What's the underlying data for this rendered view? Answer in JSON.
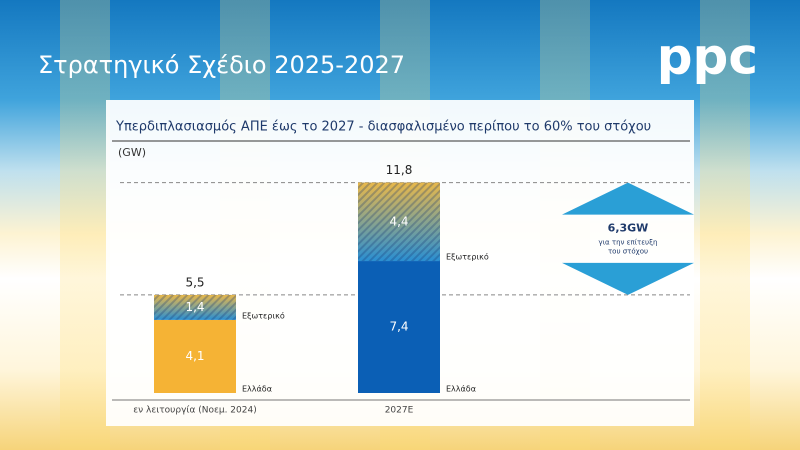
{
  "header": {
    "title": "Στρατηγικό Σχέδιο 2025-2027",
    "logo": "ppc"
  },
  "chart_data": {
    "type": "bar",
    "stacked": true,
    "title": "Υπερδιπλασιασμός ΑΠΕ έως το 2027 - διασφαλισμένο περίπου το 60% του στόχου",
    "y_label": "(GW)",
    "categories": [
      "εν λειτουργία (Νοεμ. 2024)",
      "2027E"
    ],
    "series": [
      {
        "name": "Ελλάδα",
        "colors": [
          "#f5b335",
          "#0b5fb5"
        ],
        "values": [
          4.1,
          7.4
        ],
        "value_labels": [
          "4,1",
          "7,4"
        ]
      },
      {
        "name": "Εξωτερικό",
        "colors": [
          "#e8b84a",
          "#2a8fd2"
        ],
        "values": [
          1.4,
          4.4
        ],
        "value_labels": [
          "1,4",
          "4,4"
        ]
      }
    ],
    "totals": [
      5.5,
      11.8
    ],
    "total_labels": [
      "5,5",
      "11,8"
    ],
    "ylim": [
      0,
      12
    ],
    "annotation": {
      "value": 6.3,
      "label": "6,3GW",
      "text": "για την επίτευξη\nτου στόχου",
      "color": "#2a9fd6"
    }
  }
}
